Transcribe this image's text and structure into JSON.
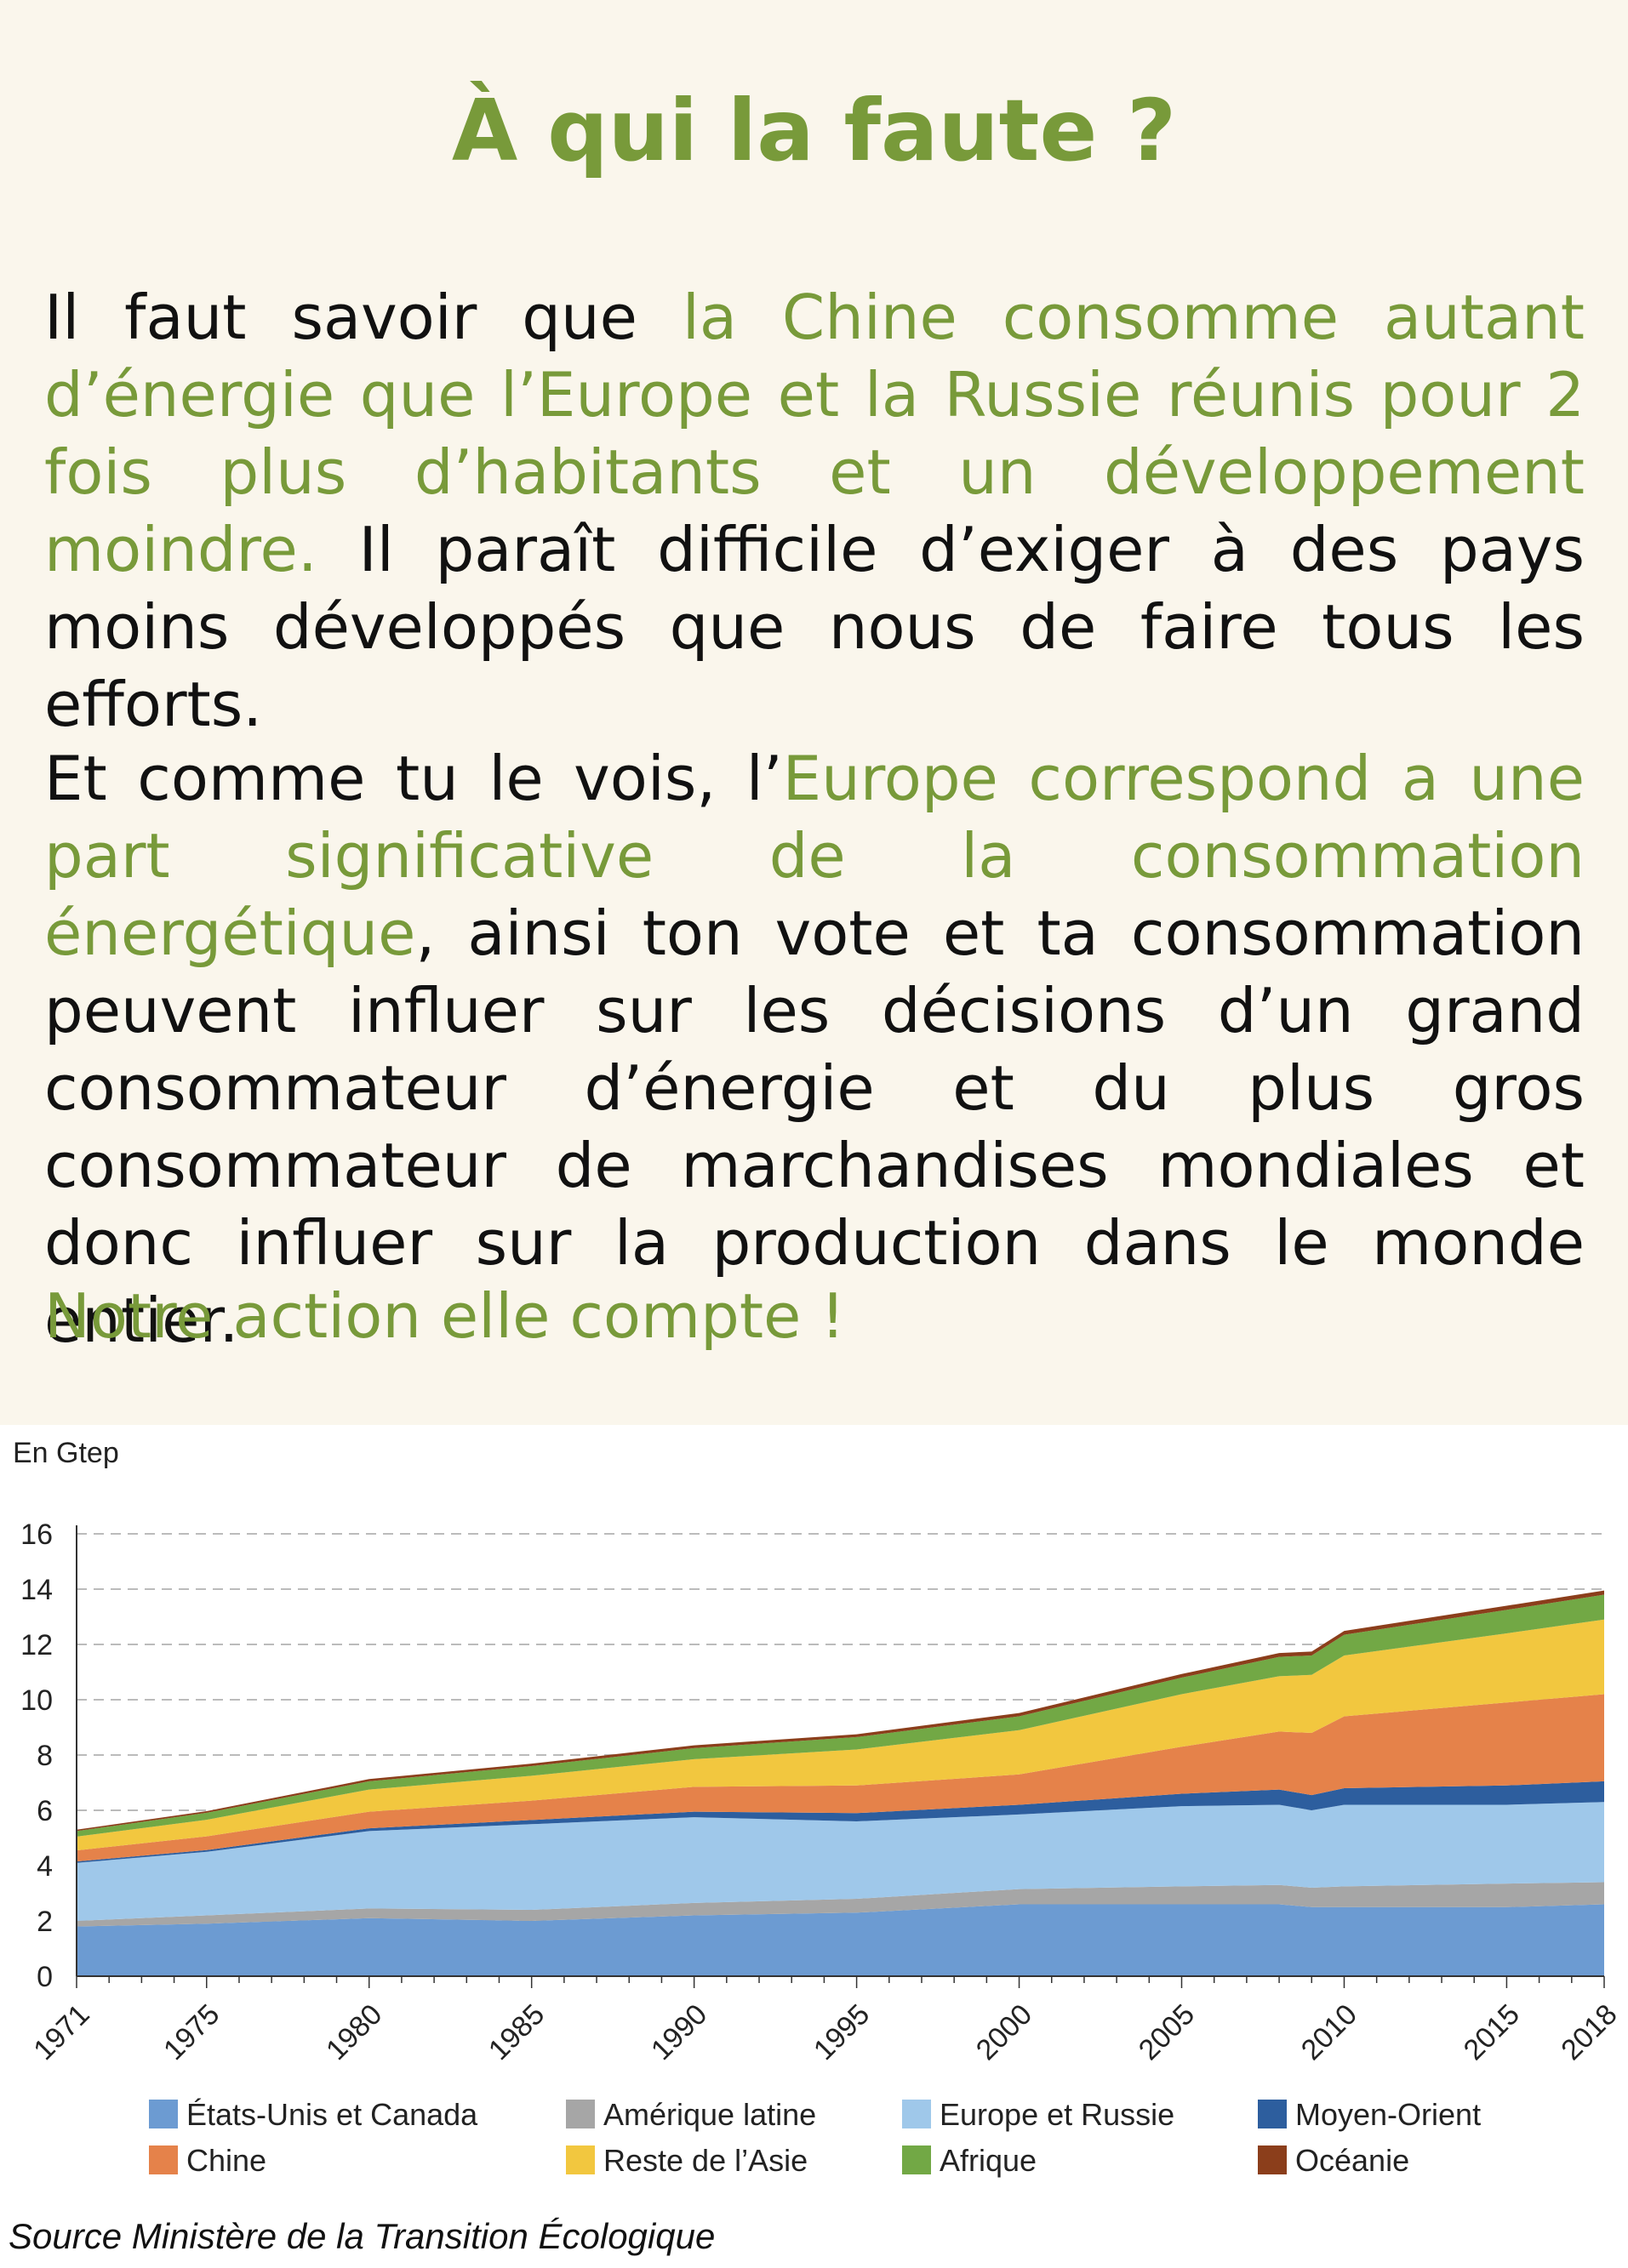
{
  "header": {
    "title": "À qui la faute ?"
  },
  "text": {
    "p1_a": "Il faut savoir que ",
    "p1_b": "la Chine consomme autant d’énergie que l’Europe et la Russie réunis pour 2 fois plus d’habitants et un développement moindre.",
    "p1_c": " Il paraît difficile d’exiger à des pays moins développés que nous de faire tous les efforts.",
    "p2_a": "Et comme tu le vois, l’",
    "p2_b": "Europe correspond a une part significative de la consommation énergétique",
    "p2_c": ", ainsi ton vote et ta consommation peuvent influer sur les décisions d’un grand consommateur d’énergie et du plus gros consommateur de marchandises mondiales et donc influer sur la production dans le monde entier.",
    "p3": "Notre action elle compte !"
  },
  "source": "Source Ministère de la Transition Écologique",
  "chart_data": {
    "type": "area",
    "stacked": true,
    "unit_label": "En Gtep",
    "ylim": [
      0,
      16
    ],
    "yticks": [
      0,
      2,
      4,
      6,
      8,
      10,
      12,
      14,
      16
    ],
    "xlim": [
      1971,
      2018
    ],
    "xticks": [
      1971,
      1975,
      1980,
      1985,
      1990,
      1995,
      2000,
      2005,
      2010,
      2015,
      2018
    ],
    "grid": true,
    "legend_position": "bottom",
    "x": [
      1971,
      1975,
      1980,
      1985,
      1990,
      1995,
      2000,
      2005,
      2008,
      2009,
      2010,
      2015,
      2018
    ],
    "series": [
      {
        "name": "États-Unis et Canada",
        "color": "#6c9bd2",
        "values": [
          1.8,
          1.9,
          2.1,
          2.0,
          2.2,
          2.3,
          2.6,
          2.6,
          2.6,
          2.5,
          2.5,
          2.5,
          2.6
        ]
      },
      {
        "name": "Amérique latine",
        "color": "#a6a6a6",
        "values": [
          0.2,
          0.3,
          0.35,
          0.4,
          0.45,
          0.5,
          0.55,
          0.65,
          0.7,
          0.7,
          0.75,
          0.85,
          0.8
        ]
      },
      {
        "name": "Europe et Russie",
        "color": "#9fc8ea",
        "values": [
          2.1,
          2.3,
          2.8,
          3.1,
          3.1,
          2.8,
          2.7,
          2.9,
          2.9,
          2.8,
          2.95,
          2.85,
          2.9
        ]
      },
      {
        "name": "Moyen-Orient",
        "color": "#2d5e9e",
        "values": [
          0.05,
          0.06,
          0.1,
          0.15,
          0.2,
          0.3,
          0.35,
          0.45,
          0.55,
          0.55,
          0.6,
          0.7,
          0.75
        ]
      },
      {
        "name": "Chine",
        "color": "#e5824a",
        "values": [
          0.4,
          0.5,
          0.6,
          0.7,
          0.9,
          1.0,
          1.1,
          1.7,
          2.1,
          2.25,
          2.6,
          3.0,
          3.15
        ]
      },
      {
        "name": "Reste de l’Asie",
        "color": "#f2c73f",
        "values": [
          0.5,
          0.6,
          0.8,
          0.9,
          1.0,
          1.3,
          1.6,
          1.9,
          2.0,
          2.1,
          2.2,
          2.5,
          2.7
        ]
      },
      {
        "name": "Afrique",
        "color": "#72a845",
        "values": [
          0.2,
          0.25,
          0.3,
          0.35,
          0.4,
          0.45,
          0.5,
          0.6,
          0.7,
          0.7,
          0.75,
          0.85,
          0.9
        ]
      },
      {
        "name": "Océanie",
        "color": "#8b3e1b",
        "values": [
          0.05,
          0.06,
          0.08,
          0.09,
          0.1,
          0.1,
          0.12,
          0.13,
          0.14,
          0.14,
          0.14,
          0.15,
          0.15
        ]
      }
    ]
  }
}
